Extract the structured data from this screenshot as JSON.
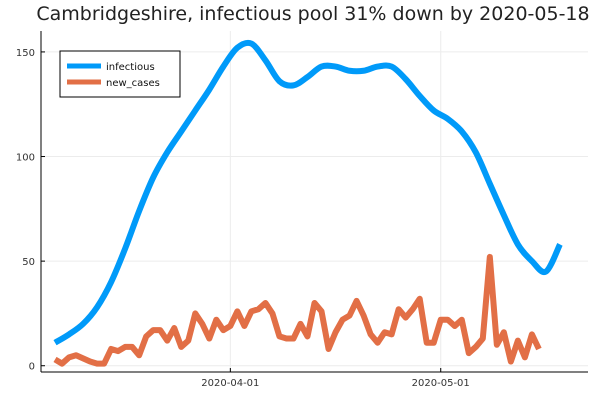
{
  "chart_data": {
    "type": "line",
    "title": "Cambridgeshire, infectious pool 31% down by 2020-05-18",
    "xlabel": "",
    "ylabel": "",
    "x_ticks": [
      "2020-04-01",
      "2020-05-01"
    ],
    "y_ticks": [
      "0",
      "50",
      "100",
      "150"
    ],
    "ylim": [
      -3,
      160
    ],
    "xlim": [
      "2020-03-05",
      "2020-05-22"
    ],
    "grid": true,
    "legend_position": "top-left",
    "series": [
      {
        "name": "infectious",
        "color": "#009af9",
        "x": [
          "2020-03-07",
          "2020-03-09",
          "2020-03-11",
          "2020-03-13",
          "2020-03-15",
          "2020-03-17",
          "2020-03-19",
          "2020-03-21",
          "2020-03-23",
          "2020-03-25",
          "2020-03-27",
          "2020-03-29",
          "2020-03-31",
          "2020-04-02",
          "2020-04-04",
          "2020-04-06",
          "2020-04-08",
          "2020-04-10",
          "2020-04-12",
          "2020-04-14",
          "2020-04-16",
          "2020-04-18",
          "2020-04-20",
          "2020-04-22",
          "2020-04-24",
          "2020-04-26",
          "2020-04-28",
          "2020-04-30",
          "2020-05-02",
          "2020-05-04",
          "2020-05-06",
          "2020-05-08",
          "2020-05-10",
          "2020-05-12",
          "2020-05-14",
          "2020-05-16",
          "2020-05-18"
        ],
        "values": [
          11,
          15,
          20,
          28,
          40,
          56,
          74,
          90,
          102,
          112,
          122,
          132,
          143,
          152,
          154,
          146,
          136,
          134,
          138,
          143,
          143,
          141,
          141,
          143,
          143,
          137,
          129,
          122,
          118,
          112,
          102,
          87,
          72,
          58,
          50,
          45,
          58
        ]
      },
      {
        "name": "new_cases",
        "color": "#e26f46",
        "x": [
          "2020-03-07",
          "2020-03-08",
          "2020-03-09",
          "2020-03-10",
          "2020-03-12",
          "2020-03-13",
          "2020-03-14",
          "2020-03-15",
          "2020-03-16",
          "2020-03-17",
          "2020-03-18",
          "2020-03-19",
          "2020-03-20",
          "2020-03-21",
          "2020-03-22",
          "2020-03-23",
          "2020-03-24",
          "2020-03-25",
          "2020-03-26",
          "2020-03-27",
          "2020-03-28",
          "2020-03-29",
          "2020-03-30",
          "2020-03-31",
          "2020-04-01",
          "2020-04-02",
          "2020-04-03",
          "2020-04-04",
          "2020-04-05",
          "2020-04-06",
          "2020-04-07",
          "2020-04-08",
          "2020-04-09",
          "2020-04-10",
          "2020-04-11",
          "2020-04-12",
          "2020-04-13",
          "2020-04-14",
          "2020-04-15",
          "2020-04-16",
          "2020-04-17",
          "2020-04-18",
          "2020-04-19",
          "2020-04-20",
          "2020-04-21",
          "2020-04-22",
          "2020-04-23",
          "2020-04-24",
          "2020-04-25",
          "2020-04-26",
          "2020-04-27",
          "2020-04-28",
          "2020-04-29",
          "2020-04-30",
          "2020-05-01",
          "2020-05-02",
          "2020-05-03",
          "2020-05-04",
          "2020-05-05",
          "2020-05-06",
          "2020-05-07",
          "2020-05-08",
          "2020-05-09",
          "2020-05-10",
          "2020-05-11",
          "2020-05-12",
          "2020-05-13",
          "2020-05-14",
          "2020-05-15",
          "2020-05-16",
          "2020-05-17",
          "2020-05-18"
        ],
        "values": [
          3,
          1,
          4,
          5,
          2,
          1,
          1,
          8,
          7,
          9,
          9,
          5,
          14,
          17,
          17,
          12,
          18,
          9,
          12,
          25,
          20,
          13,
          22,
          17,
          19,
          26,
          19,
          26,
          27,
          30,
          25,
          14,
          13,
          13,
          20,
          14,
          30,
          26,
          8,
          16,
          22,
          24,
          31,
          24,
          15,
          11,
          16,
          15,
          27,
          23,
          27,
          32,
          11,
          11,
          22,
          22,
          19,
          22,
          6,
          9,
          13,
          52,
          10,
          16,
          2,
          12,
          4,
          15,
          8,
          null,
          null,
          null
        ]
      }
    ]
  }
}
